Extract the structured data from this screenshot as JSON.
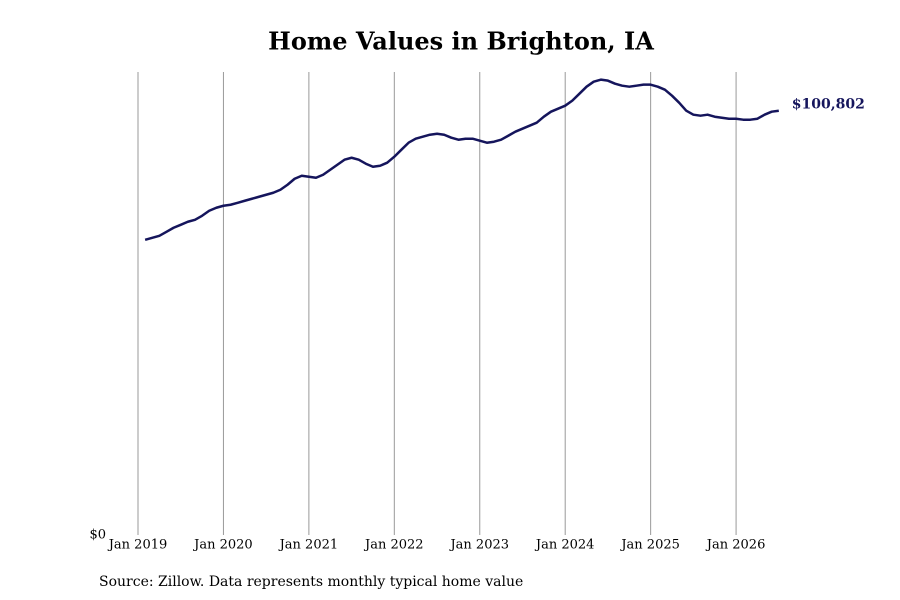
{
  "chart_data": {
    "type": "line",
    "title": "Home Values in Brighton, IA",
    "source": "Source: Zillow. Data represents monthly typical home value",
    "x": [
      "2019-02",
      "2019-03",
      "2019-04",
      "2019-05",
      "2019-06",
      "2019-07",
      "2019-08",
      "2019-09",
      "2019-10",
      "2019-11",
      "2019-12",
      "2020-01",
      "2020-02",
      "2020-03",
      "2020-04",
      "2020-05",
      "2020-06",
      "2020-07",
      "2020-08",
      "2020-09",
      "2020-10",
      "2020-11",
      "2020-12",
      "2021-01",
      "2021-02",
      "2021-03",
      "2021-04",
      "2021-05",
      "2021-06",
      "2021-07",
      "2021-08",
      "2021-09",
      "2021-10",
      "2021-11",
      "2021-12",
      "2022-01",
      "2022-02",
      "2022-03",
      "2022-04",
      "2022-05",
      "2022-06",
      "2022-07",
      "2022-08",
      "2022-09",
      "2022-10",
      "2022-11",
      "2022-12",
      "2023-01",
      "2023-02",
      "2023-03",
      "2023-04",
      "2023-05",
      "2023-06",
      "2023-07",
      "2023-08",
      "2023-09",
      "2023-10",
      "2023-11",
      "2023-12",
      "2024-01",
      "2024-02",
      "2024-03",
      "2024-04",
      "2024-05",
      "2024-06",
      "2024-07",
      "2024-08",
      "2024-09",
      "2024-10",
      "2024-11",
      "2024-12",
      "2025-01",
      "2025-02",
      "2025-03",
      "2025-04",
      "2025-05",
      "2025-06",
      "2025-07",
      "2025-08",
      "2025-09",
      "2025-10",
      "2025-11",
      "2025-12",
      "2026-01",
      "2026-02",
      "2026-03",
      "2026-04",
      "2026-05",
      "2026-06",
      "2026-07"
    ],
    "series": [
      {
        "name": "Home value",
        "color": "#15155c",
        "values": [
          70140,
          70600,
          71090,
          72040,
          73000,
          73700,
          74420,
          74890,
          75840,
          77030,
          77750,
          78220,
          78460,
          78930,
          79410,
          79890,
          80360,
          80840,
          81310,
          82030,
          83210,
          84640,
          85350,
          85120,
          84880,
          85590,
          86780,
          87970,
          89160,
          89630,
          89160,
          88210,
          87490,
          87730,
          88450,
          89870,
          91540,
          93200,
          94150,
          94630,
          95100,
          95340,
          95100,
          94390,
          93910,
          94150,
          94150,
          93680,
          93200,
          93440,
          93910,
          94860,
          95820,
          96530,
          97240,
          97960,
          99380,
          100570,
          101280,
          102000,
          103190,
          104850,
          106510,
          107700,
          108180,
          107940,
          107230,
          106750,
          106510,
          106750,
          106990,
          106990,
          106510,
          105800,
          104370,
          102710,
          100810,
          99860,
          99620,
          99860,
          99380,
          99140,
          98900,
          98900,
          98670,
          98670,
          98900,
          99860,
          100570,
          100802
        ],
        "value_labels": [
          null,
          null,
          null,
          null,
          null,
          null,
          null,
          null,
          null,
          null,
          null,
          null,
          null,
          null,
          null,
          null,
          null,
          null,
          null,
          null,
          null,
          null,
          null,
          null,
          null,
          null,
          null,
          null,
          null,
          null,
          null,
          null,
          null,
          null,
          null,
          null,
          null,
          null,
          null,
          null,
          null,
          null,
          null,
          null,
          null,
          null,
          null,
          null,
          null,
          null,
          null,
          null,
          null,
          null,
          null,
          null,
          null,
          null,
          null,
          null,
          null,
          null,
          null,
          null,
          null,
          null,
          null,
          null,
          null,
          null,
          null,
          null,
          null,
          null,
          null,
          null,
          null,
          null,
          null,
          null,
          null,
          null,
          null,
          null,
          null,
          null,
          null,
          null,
          null,
          "$100,802"
        ]
      }
    ],
    "xlim": [
      "2019-01",
      "2026-07"
    ],
    "xticks": [
      {
        "value": "2019-01",
        "label": "Jan 2019"
      },
      {
        "value": "2020-01",
        "label": "Jan 2020"
      },
      {
        "value": "2021-01",
        "label": "Jan 2021"
      },
      {
        "value": "2022-01",
        "label": "Jan 2022"
      },
      {
        "value": "2023-01",
        "label": "Jan 2023"
      },
      {
        "value": "2024-01",
        "label": "Jan 2024"
      },
      {
        "value": "2025-01",
        "label": "Jan 2025"
      },
      {
        "value": "2026-01",
        "label": "Jan 2026"
      }
    ],
    "ylim": [
      0,
      110000
    ],
    "yticks": [
      {
        "value": 0,
        "label": "$0"
      }
    ],
    "grid": "x"
  }
}
